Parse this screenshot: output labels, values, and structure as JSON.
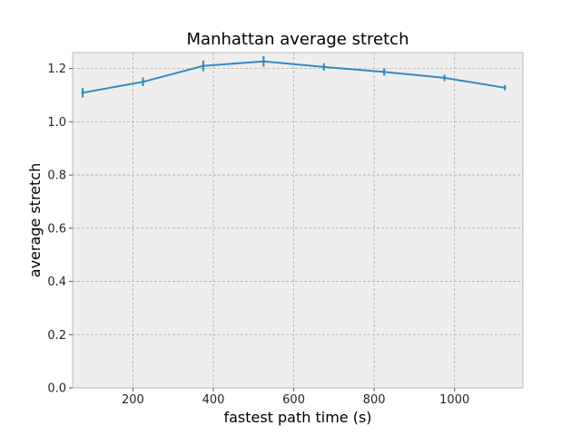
{
  "chart_data": {
    "type": "line",
    "title": "Manhattan average stretch",
    "xlabel": "fastest path time (s)",
    "ylabel": "average stretch",
    "xlim": [
      50,
      1170
    ],
    "ylim": [
      0.0,
      1.26
    ],
    "xticks": [
      200,
      400,
      600,
      800,
      1000
    ],
    "yticks": [
      0.0,
      0.2,
      0.4,
      0.6,
      0.8,
      1.0,
      1.2
    ],
    "ytick_labels": [
      "0.0",
      "0.2",
      "0.4",
      "0.6",
      "0.8",
      "1.0",
      "1.2"
    ],
    "grid": true,
    "series": [
      {
        "x": [
          75,
          225,
          375,
          525,
          675,
          825,
          975,
          1125
        ],
        "y": [
          1.109,
          1.15,
          1.21,
          1.227,
          1.206,
          1.187,
          1.165,
          1.128
        ],
        "yerr": [
          0.018,
          0.016,
          0.02,
          0.02,
          0.014,
          0.014,
          0.012,
          0.01
        ]
      }
    ],
    "colors": {
      "line": "#348abd",
      "background": "#eeeeee",
      "spine": "#bcbcbc"
    }
  }
}
